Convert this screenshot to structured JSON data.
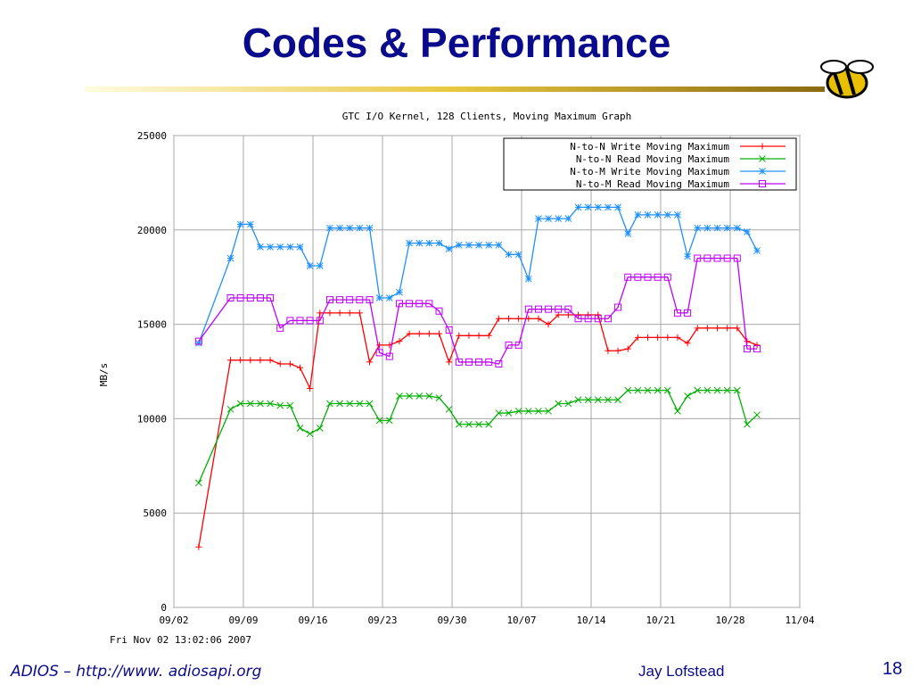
{
  "slide": {
    "title": "Codes & Performance",
    "footer_left": "ADIOS – http://www. adiosapi.org",
    "footer_author": "Jay Lofstead",
    "page_number": "18"
  },
  "chart_data": {
    "type": "line",
    "title": "GTC I/O Kernel, 128 Clients, Moving Maximum Graph",
    "y_label": "MB/s",
    "footnote": "Fri Nov 02 13:02:06 2007",
    "x": [
      247.5,
      250.7,
      251.7,
      252.7,
      253.7,
      254.7,
      255.7,
      256.7,
      257.7,
      258.7,
      259.7,
      260.7,
      261.7,
      262.7,
      263.7,
      264.7,
      265.7,
      266.7,
      267.7,
      268.7,
      269.7,
      270.7,
      271.7,
      272.7,
      273.7,
      274.7,
      275.7,
      276.7,
      277.7,
      278.7,
      279.7,
      280.7,
      281.7,
      282.7,
      283.7,
      284.7,
      285.7,
      286.7,
      287.7,
      288.7,
      289.7,
      290.7,
      291.7,
      292.7,
      293.7,
      294.7,
      295.7,
      296.7,
      297.7,
      298.7,
      299.7,
      300.7,
      301.7,
      302.7,
      303.7
    ],
    "series": [
      {
        "name": "N-to-N Write Moving Maximum",
        "color": "#ff0000",
        "marker": "plus",
        "values": [
          3200,
          13100,
          13100,
          13100,
          13100,
          13100,
          12900,
          12900,
          12700,
          11600,
          15600,
          15600,
          15600,
          15600,
          15600,
          13000,
          13900,
          13900,
          14100,
          14500,
          14500,
          14500,
          14500,
          13000,
          14400,
          14400,
          14400,
          14400,
          15300,
          15300,
          15300,
          15300,
          15300,
          15000,
          15500,
          15500,
          15500,
          15500,
          15500,
          13600,
          13600,
          13700,
          14300,
          14300,
          14300,
          14300,
          14300,
          14000,
          14800,
          14800,
          14800,
          14800,
          14800,
          14100,
          13900
        ]
      },
      {
        "name": "N-to-N Read Moving Maximum",
        "color": "#00b000",
        "marker": "cross",
        "values": [
          6600,
          10500,
          10800,
          10800,
          10800,
          10800,
          10700,
          10700,
          9500,
          9200,
          9500,
          10800,
          10800,
          10800,
          10800,
          10800,
          9900,
          9900,
          11200,
          11200,
          11200,
          11200,
          11100,
          10500,
          9700,
          9700,
          9700,
          9700,
          10300,
          10300,
          10400,
          10400,
          10400,
          10400,
          10800,
          10800,
          11000,
          11000,
          11000,
          11000,
          11000,
          11500,
          11500,
          11500,
          11500,
          11500,
          10400,
          11200,
          11500,
          11500,
          11500,
          11500,
          11500,
          9700,
          10200
        ]
      },
      {
        "name": "N-to-M Write Moving Maximum",
        "color": "#1e90ff",
        "marker": "star",
        "values": [
          14000,
          18500,
          20300,
          20300,
          19100,
          19100,
          19100,
          19100,
          19100,
          18100,
          18100,
          20100,
          20100,
          20100,
          20100,
          20100,
          16400,
          16400,
          16700,
          19300,
          19300,
          19300,
          19300,
          19000,
          19200,
          19200,
          19200,
          19200,
          19200,
          18700,
          18700,
          17400,
          20600,
          20600,
          20600,
          20600,
          21200,
          21200,
          21200,
          21200,
          21200,
          19800,
          20800,
          20800,
          20800,
          20800,
          20800,
          18600,
          20100,
          20100,
          20100,
          20100,
          20100,
          19900,
          18900
        ]
      },
      {
        "name": "N-to-M Read Moving Maximum",
        "color": "#c000ff",
        "marker": "square",
        "values": [
          14100,
          16400,
          16400,
          16400,
          16400,
          16400,
          14800,
          15200,
          15200,
          15200,
          15200,
          16300,
          16300,
          16300,
          16300,
          16300,
          13500,
          13300,
          16100,
          16100,
          16100,
          16100,
          15700,
          14700,
          13000,
          13000,
          13000,
          13000,
          12900,
          13900,
          13900,
          15800,
          15800,
          15800,
          15800,
          15800,
          15300,
          15300,
          15300,
          15300,
          15900,
          17500,
          17500,
          17500,
          17500,
          17500,
          15600,
          15600,
          18500,
          18500,
          18500,
          18500,
          18500,
          13700,
          13700
        ]
      }
    ],
    "xlim": [
      245,
      308
    ],
    "xticks": [
      {
        "value": 245,
        "label": "09/02"
      },
      {
        "value": 252,
        "label": "09/09"
      },
      {
        "value": 259,
        "label": "09/16"
      },
      {
        "value": 266,
        "label": "09/23"
      },
      {
        "value": 273,
        "label": "09/30"
      },
      {
        "value": 280,
        "label": "10/07"
      },
      {
        "value": 287,
        "label": "10/14"
      },
      {
        "value": 294,
        "label": "10/21"
      },
      {
        "value": 301,
        "label": "10/28"
      },
      {
        "value": 308,
        "label": "11/04"
      }
    ],
    "ylim": [
      0,
      25000
    ],
    "yticks": [
      0,
      5000,
      10000,
      15000,
      20000,
      25000
    ],
    "grid": true,
    "legend": "upper right"
  }
}
